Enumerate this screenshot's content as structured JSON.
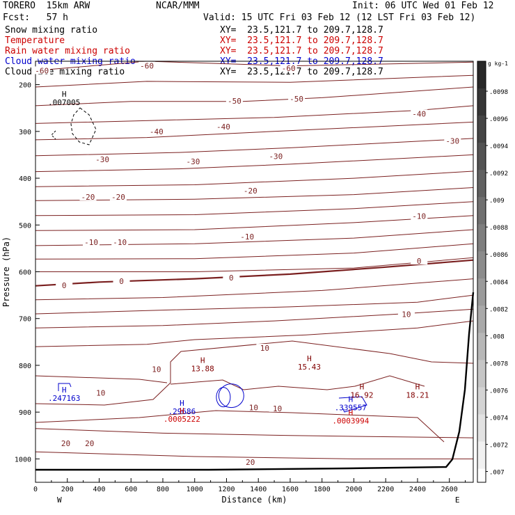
{
  "header": {
    "model": "TORERO  15km ARW",
    "org": "NCAR/MMM",
    "init": "Init: 06 UTC Wed 01 Feb 12",
    "fcst": "Fcst:   57 h",
    "valid": "Valid: 15 UTC Fri 03 Feb 12 (12 LST Fri 03 Feb 12)"
  },
  "fields": [
    {
      "name": "Snow mixing ratio",
      "xy": "XY=  23.5,121.7 to 209.7,128.7",
      "color": "#000000"
    },
    {
      "name": "Temperature",
      "xy": "XY=  23.5,121.7 to 209.7,128.7",
      "color": "#cc0000"
    },
    {
      "name": "Rain water mixing ratio",
      "xy": "XY=  23.5,121.7 to 209.7,128.7",
      "color": "#cc0000"
    },
    {
      "name": "Cloud water mixing ratio",
      "xy": "XY=  23.5,121.7 to 209.7,128.7",
      "color": "#0000cc"
    },
    {
      "name": "Cloud ice mixing ratio",
      "xy": "XY=  23.5,121.7 to 209.7,128.7",
      "color": "#000000"
    }
  ],
  "chart_data": {
    "type": "contour",
    "xlabel": "Distance (km)",
    "ylabel": "Pressure (hPa)",
    "xlim": [
      0,
      2750
    ],
    "ylim": [
      150,
      1050
    ],
    "x_ticks": [
      0,
      200,
      400,
      600,
      800,
      1000,
      1200,
      1400,
      1600,
      1800,
      2000,
      2200,
      2400,
      2600
    ],
    "y_ticks": [
      200,
      300,
      400,
      500,
      600,
      700,
      800,
      900,
      1000
    ],
    "x_end_labels": {
      "left": "W",
      "right": "E"
    },
    "colorbar": {
      "units": "g kg-1",
      "labels": [
        ".0098",
        ".0096",
        ".0094",
        ".0092",
        ".009",
        ".0088",
        ".0086",
        ".0084",
        ".0082",
        ".008",
        ".0078",
        ".0076",
        ".0074",
        ".0072",
        ".007"
      ]
    },
    "temperature_contours_label_positions": [
      {
        "label": "-60",
        "x": 40,
        "p": 170
      },
      {
        "label": "-60",
        "x": 700,
        "p": 160
      },
      {
        "label": "-60",
        "x": 1590,
        "p": 165
      },
      {
        "label": "-50",
        "x": 1640,
        "p": 230
      },
      {
        "label": "-50",
        "x": 1250,
        "p": 235
      },
      {
        "label": "-40",
        "x": 760,
        "p": 300
      },
      {
        "label": "-40",
        "x": 1180,
        "p": 290
      },
      {
        "label": "-40",
        "x": 2410,
        "p": 262
      },
      {
        "label": "-30",
        "x": 420,
        "p": 360
      },
      {
        "label": "-30",
        "x": 1510,
        "p": 353
      },
      {
        "label": "-30",
        "x": 2620,
        "p": 320
      },
      {
        "label": "-30",
        "x": 990,
        "p": 364
      },
      {
        "label": "-20",
        "x": 330,
        "p": 440
      },
      {
        "label": "-20",
        "x": 520,
        "p": 440
      },
      {
        "label": "-20",
        "x": 1350,
        "p": 427
      },
      {
        "label": "-10",
        "x": 350,
        "p": 537
      },
      {
        "label": "-10",
        "x": 530,
        "p": 537
      },
      {
        "label": "-10",
        "x": 1330,
        "p": 525
      },
      {
        "label": "-10",
        "x": 2410,
        "p": 481
      },
      {
        "label": "0",
        "x": 180,
        "p": 629
      },
      {
        "label": "0",
        "x": 540,
        "p": 620
      },
      {
        "label": "0",
        "x": 1230,
        "p": 613
      },
      {
        "label": "0",
        "x": 2410,
        "p": 577
      },
      {
        "label": "10",
        "x": 2330,
        "p": 691
      },
      {
        "label": "10",
        "x": 1440,
        "p": 763
      },
      {
        "label": "10",
        "x": 760,
        "p": 808
      },
      {
        "label": "10",
        "x": 410,
        "p": 859
      },
      {
        "label": "10",
        "x": 1370,
        "p": 890
      },
      {
        "label": "10",
        "x": 1520,
        "p": 892
      },
      {
        "label": "20",
        "x": 190,
        "p": 967
      },
      {
        "label": "20",
        "x": 340,
        "p": 967
      },
      {
        "label": "20",
        "x": 1350,
        "p": 1007
      }
    ],
    "maxima": [
      {
        "type": "H",
        "value": ".007005",
        "x": 180,
        "p": 235,
        "color": "#000000"
      },
      {
        "type": "H",
        "value": ".247163",
        "x": 180,
        "p": 867,
        "color": "#0000cc"
      },
      {
        "type": "H",
        "value": ".29686",
        "x": 920,
        "p": 895,
        "color": "#0000cc"
      },
      {
        "type": "H",
        "value": ".0005222",
        "x": 920,
        "p": 912,
        "color": "#cc0000"
      },
      {
        "type": "H",
        "value": "13.88",
        "x": 1050,
        "p": 804,
        "color": "#800000"
      },
      {
        "type": "H",
        "value": "15.43",
        "x": 1720,
        "p": 800,
        "color": "#800000"
      },
      {
        "type": "H",
        "value": ".339557",
        "x": 1980,
        "p": 887,
        "color": "#0000cc"
      },
      {
        "type": "H",
        "value": ".0003994",
        "x": 1980,
        "p": 915,
        "color": "#cc0000"
      },
      {
        "type": "H",
        "value": "16.92",
        "x": 2050,
        "p": 860,
        "color": "#800000"
      },
      {
        "type": "H",
        "value": "18.21",
        "x": 2400,
        "p": 860,
        "color": "#800000"
      }
    ]
  }
}
